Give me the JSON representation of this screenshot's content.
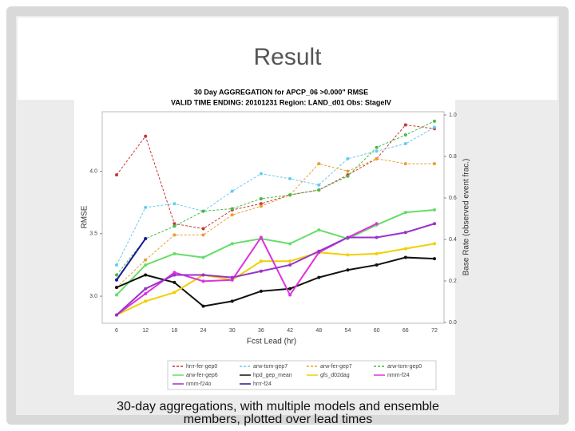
{
  "slide": {
    "title": "Result",
    "caption": [
      "30-day aggregations, with multiple models and ensemble",
      "members, plotted over lead times"
    ]
  },
  "chart_data": {
    "type": "line",
    "title": [
      "30 Day AGGREGATION for APCP_06 >0.000\" RMSE",
      "VALID TIME ENDING: 20101231   Region: LAND_d01   Obs: StageIV"
    ],
    "xlabel": "Fcst Lead (hr)",
    "ylabel": "RMSE",
    "y2label": "Base Rate (observed event frac.)",
    "categories": [
      "6",
      "12",
      "18",
      "24",
      "30",
      "36",
      "42",
      "48",
      "54",
      "60",
      "66",
      "72"
    ],
    "ylim": [
      2.79,
      4.45
    ],
    "yticks": [
      {
        "value": 3,
        "label": "3.0"
      },
      {
        "value": 3.5,
        "label": "3.5"
      },
      {
        "value": 4,
        "label": "4.0"
      }
    ],
    "y2lim": [
      0,
      1
    ],
    "y2ticks": [
      {
        "value": 0,
        "label": "0.0"
      },
      {
        "value": 0.2,
        "label": "0.2"
      },
      {
        "value": 0.4,
        "label": "0.4"
      },
      {
        "value": 0.6,
        "label": "0.6"
      },
      {
        "value": 0.8,
        "label": "0.8"
      },
      {
        "value": 1,
        "label": "1.0"
      }
    ],
    "series": [
      {
        "name": "hrrr-fer-gep0",
        "color": "#cc3333",
        "dash": true,
        "values": [
          3.97,
          4.28,
          3.58,
          3.54,
          3.69,
          3.74,
          3.81,
          3.85,
          3.97,
          4.1,
          4.37,
          4.34
        ]
      },
      {
        "name": "arw-tom-gep7",
        "color": "#66ccee",
        "dash": true,
        "values": [
          3.25,
          3.71,
          3.74,
          3.68,
          3.84,
          3.98,
          3.94,
          3.89,
          4.1,
          4.16,
          4.22,
          4.35
        ]
      },
      {
        "name": "arw-fer-gep7",
        "color": "#e8a030",
        "dash": true,
        "values": [
          3.07,
          3.29,
          3.49,
          3.49,
          3.65,
          3.72,
          3.81,
          4.06,
          4.0,
          4.1,
          4.06,
          4.06
        ]
      },
      {
        "name": "arw-tom-gep0",
        "color": "#44bb44",
        "dash": true,
        "values": [
          3.17,
          3.46,
          3.56,
          3.68,
          3.7,
          3.78,
          3.81,
          3.85,
          3.96,
          4.19,
          4.29,
          4.4
        ]
      },
      {
        "name": "arw-fer-gep6",
        "color": "#66dd66",
        "dash": false,
        "values": [
          3.01,
          3.25,
          3.34,
          3.31,
          3.42,
          3.46,
          3.42,
          3.53,
          3.46,
          3.57,
          3.67,
          3.69
        ]
      },
      {
        "name": "hpd_gep_mean",
        "color": "#111111",
        "dash": false,
        "values": [
          3.07,
          3.17,
          3.11,
          2.92,
          2.96,
          3.04,
          3.06,
          3.15,
          3.21,
          3.25,
          3.31,
          3.3
        ]
      },
      {
        "name": "gfs_d02dag",
        "color": "#f0d000",
        "dash": false,
        "values": [
          2.85,
          2.96,
          3.03,
          3.17,
          3.13,
          3.28,
          3.28,
          3.35,
          3.33,
          3.34,
          3.38,
          3.42
        ]
      },
      {
        "name": "nmm-f24",
        "color": "#dd33dd",
        "dash": false,
        "values": [
          2.85,
          3.02,
          3.19,
          3.12,
          3.13,
          3.47,
          3.01,
          3.35,
          3.47,
          3.58,
          null,
          null
        ]
      },
      {
        "name": "nmm-f24o",
        "color": "#9933cc",
        "dash": false,
        "values": [
          2.85,
          3.06,
          3.17,
          3.17,
          3.15,
          3.2,
          3.25,
          3.36,
          3.47,
          3.47,
          3.51,
          3.58
        ]
      },
      {
        "name": "hrrr-f24",
        "color": "#1a1a99",
        "dash": false,
        "values": [
          3.13,
          3.46,
          null,
          null,
          null,
          null,
          null,
          null,
          null,
          null,
          null,
          null
        ]
      }
    ]
  }
}
